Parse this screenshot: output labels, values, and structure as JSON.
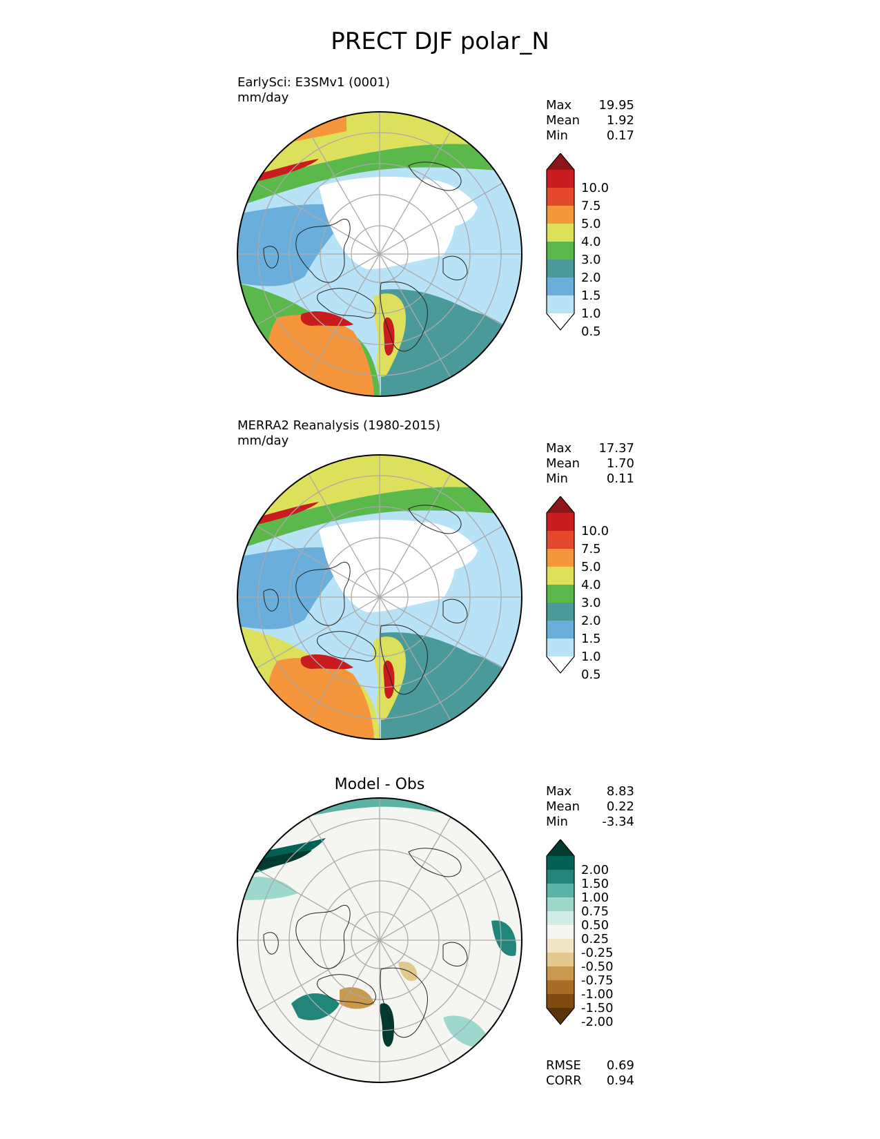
{
  "title": "PRECT DJF polar_N",
  "panels": [
    {
      "label": "EarlySci: E3SMv1 (0001)",
      "units": "mm/day",
      "stats": {
        "max_label": "Max",
        "max": "19.95",
        "mean_label": "Mean",
        "mean": "1.92",
        "min_label": "Min",
        "min": "0.17"
      },
      "colorbar": {
        "levels": [
          "0.5",
          "1.0",
          "1.5",
          "2.0",
          "3.0",
          "4.0",
          "5.0",
          "7.5",
          "10.0"
        ],
        "colors": [
          "#ffffff",
          "#b8e2f6",
          "#6aaedc",
          "#4b9a9a",
          "#5bb84a",
          "#dde05a",
          "#f5963c",
          "#e4482b",
          "#c81c1e",
          "#8c1518"
        ]
      }
    },
    {
      "label": "MERRA2 Reanalysis (1980-2015)",
      "units": "mm/day",
      "stats": {
        "max_label": "Max",
        "max": "17.37",
        "mean_label": "Mean",
        "mean": "1.70",
        "min_label": "Min",
        "min": "0.11"
      },
      "colorbar": {
        "levels": [
          "0.5",
          "1.0",
          "1.5",
          "2.0",
          "3.0",
          "4.0",
          "5.0",
          "7.5",
          "10.0"
        ],
        "colors": [
          "#ffffff",
          "#b8e2f6",
          "#6aaedc",
          "#4b9a9a",
          "#5bb84a",
          "#dde05a",
          "#f5963c",
          "#e4482b",
          "#c81c1e",
          "#8c1518"
        ]
      }
    },
    {
      "title": "Model - Obs",
      "stats": {
        "max_label": "Max",
        "max": "8.83",
        "mean_label": "Mean",
        "mean": "0.22",
        "min_label": "Min",
        "min": "-3.34"
      },
      "colorbar": {
        "levels": [
          "-2.00",
          "-1.50",
          "-1.00",
          "-0.75",
          "-0.50",
          "-0.25",
          "0.25",
          "0.50",
          "0.75",
          "1.00",
          "1.50",
          "2.00"
        ],
        "colors": [
          "#5a3409",
          "#7f4a0f",
          "#a86d24",
          "#c99a4d",
          "#e3c98e",
          "#f3e6c6",
          "#f5f5f2",
          "#d2ece8",
          "#9dd8cc",
          "#5cb3a5",
          "#21857a",
          "#006156",
          "#023a30"
        ]
      },
      "rmse_label": "RMSE",
      "rmse": "0.69",
      "corr_label": "CORR",
      "corr": "0.94"
    }
  ]
}
